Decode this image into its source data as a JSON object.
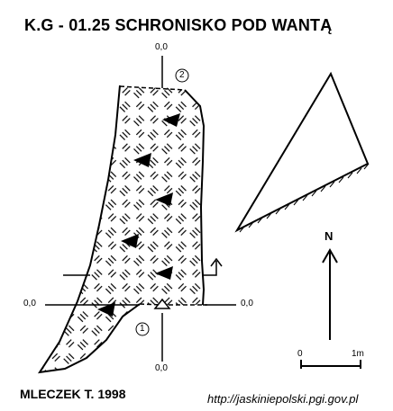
{
  "title": "K.G - 01.25  SCHRONISKO POD WANTĄ",
  "author": "MLECZEK T. 1998",
  "source_url": "http://jaskiniepolski.pgi.gov.pl",
  "north_label": "N",
  "scale": {
    "start": "0",
    "end": "1m"
  },
  "section_labels": [
    "0,0",
    "0,0",
    "0,0",
    "0,0"
  ],
  "section_numbers": [
    "1",
    "2"
  ],
  "colors": {
    "ink": "#000000",
    "background": "#ffffff"
  }
}
